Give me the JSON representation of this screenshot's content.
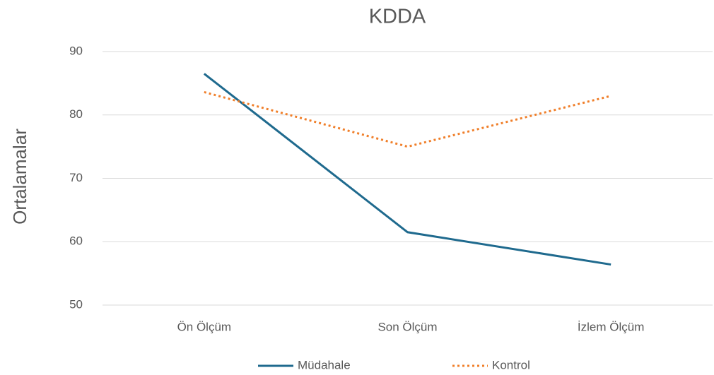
{
  "chart_data": {
    "type": "line",
    "title": "KDDA",
    "y_label": "Ortalamalar",
    "categories": [
      "Ön Ölçüm",
      "Son Ölçüm",
      "İzlem Ölçüm"
    ],
    "series": [
      {
        "name": "Müdahale",
        "color": "#1f6a8e",
        "dash": "solid",
        "values": [
          86.5,
          61.5,
          56.4
        ]
      },
      {
        "name": "Kontrol",
        "color": "#f07f2a",
        "dash": "dotted",
        "values": [
          83.6,
          75.0,
          83.0
        ]
      }
    ],
    "ylim": [
      50,
      90
    ],
    "yticks": [
      50,
      60,
      70,
      80,
      90
    ],
    "grid": true,
    "legend": "bottom"
  }
}
